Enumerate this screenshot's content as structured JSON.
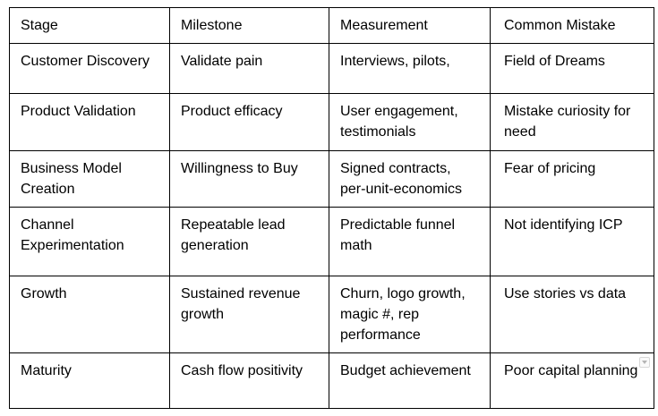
{
  "table": {
    "header": [
      "Stage",
      "Milestone",
      "Measurement",
      "Common Mistake"
    ],
    "rows": [
      [
        "Customer Discovery",
        "Validate pain",
        "Interviews, pilots,",
        "Field of Dreams"
      ],
      [
        "Product Validation",
        "Product efficacy",
        "User engagement, testimonials",
        "Mistake curiosity for need"
      ],
      [
        "Business Model Creation",
        "Willingness to Buy",
        "Signed contracts, per-unit-economics",
        "Fear of pricing"
      ],
      [
        "Channel Experimentation",
        "Repeatable lead generation",
        "Predictable funnel math",
        "Not identifying ICP"
      ],
      [
        "Growth",
        "Sustained revenue growth",
        "Churn, logo growth, magic #, rep performance",
        "Use stories vs data"
      ],
      [
        "Maturity",
        "Cash flow positivity",
        "Budget achievement",
        "Poor capital planning"
      ]
    ]
  },
  "icons": {
    "cell_menu": "chevron-down-icon"
  }
}
